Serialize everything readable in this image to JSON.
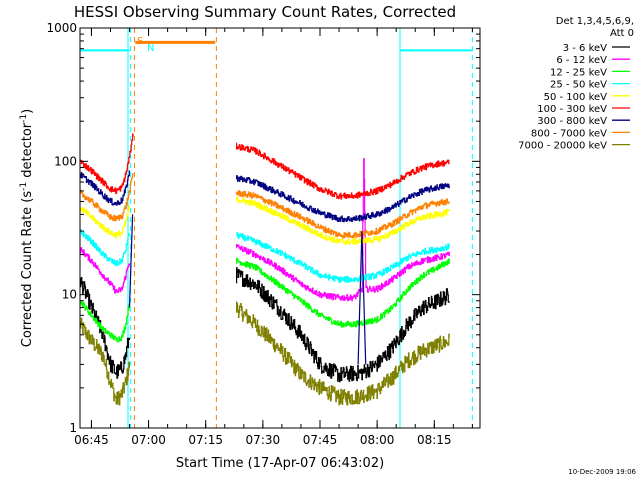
{
  "chart_data": {
    "type": "line",
    "title": "HESSI Observing Summary Count Rates, Corrected",
    "xlabel": "Start Time (17-Apr-07 06:43:02)",
    "ylabel_main": "Corrected Count Rate (s",
    "ylabel_sup1": "-1",
    "ylabel_mid": " detector",
    "ylabel_sup2": "-1",
    "ylabel_end": ")",
    "yscale": "log",
    "xlim_minutes": [
      402,
      507
    ],
    "ylim": [
      1,
      1000
    ],
    "xticks": [
      {
        "t": 405,
        "label": "06:45"
      },
      {
        "t": 420,
        "label": "07:00"
      },
      {
        "t": 435,
        "label": "07:15"
      },
      {
        "t": 450,
        "label": "07:30"
      },
      {
        "t": 465,
        "label": "07:45"
      },
      {
        "t": 480,
        "label": "08:00"
      },
      {
        "t": 495,
        "label": "08:15"
      }
    ],
    "yticks": [
      {
        "v": 1,
        "label": "1"
      },
      {
        "v": 10,
        "label": "10"
      },
      {
        "v": 100,
        "label": "100"
      },
      {
        "v": 1000,
        "label": "1000"
      }
    ],
    "legend_position": "right-outside",
    "legend_header": [
      "Det 1,3,4,5,6,9,",
      "Att 0"
    ],
    "series": [
      {
        "name": "3 - 6 keV",
        "color": "#000000",
        "pre": [
          [
            402,
            13
          ],
          [
            405,
            8
          ],
          [
            408,
            5
          ],
          [
            410,
            3
          ],
          [
            411.5,
            2.6
          ],
          [
            413,
            2.8
          ],
          [
            414,
            3.5
          ],
          [
            415,
            5
          ]
        ],
        "post": [
          [
            443,
            14
          ],
          [
            448,
            12
          ],
          [
            454,
            8
          ],
          [
            460,
            5
          ],
          [
            465,
            3
          ],
          [
            470,
            2.5
          ],
          [
            476,
            2.6
          ],
          [
            480,
            3
          ],
          [
            484,
            4
          ],
          [
            488,
            6
          ],
          [
            492,
            8
          ],
          [
            496,
            9
          ],
          [
            499,
            10
          ]
        ]
      },
      {
        "name": "6 - 12 keV",
        "color": "#ff00ff",
        "pre": [
          [
            402,
            22
          ],
          [
            405,
            18
          ],
          [
            408,
            14
          ],
          [
            410,
            12
          ],
          [
            411.5,
            10.5
          ],
          [
            413,
            11
          ],
          [
            414,
            14
          ],
          [
            415,
            18
          ]
        ],
        "post": [
          [
            443,
            23
          ],
          [
            448,
            20
          ],
          [
            454,
            16
          ],
          [
            460,
            12
          ],
          [
            465,
            10
          ],
          [
            470,
            9.5
          ],
          [
            474,
            9.5
          ],
          [
            476,
            11
          ],
          [
            476.5,
            115
          ],
          [
            477,
            11
          ],
          [
            480,
            11
          ],
          [
            484,
            13
          ],
          [
            488,
            16
          ],
          [
            492,
            18
          ],
          [
            496,
            19
          ],
          [
            499,
            20
          ]
        ]
      },
      {
        "name": "12 - 25 keV",
        "color": "#00ff00",
        "pre": [
          [
            402,
            9
          ],
          [
            405,
            7
          ],
          [
            408,
            5.5
          ],
          [
            410,
            5
          ],
          [
            411.5,
            4.6
          ],
          [
            413,
            4.8
          ],
          [
            414,
            6
          ],
          [
            415,
            9
          ]
        ],
        "post": [
          [
            443,
            18
          ],
          [
            448,
            16
          ],
          [
            454,
            12
          ],
          [
            460,
            9
          ],
          [
            465,
            7
          ],
          [
            470,
            6
          ],
          [
            474,
            6
          ],
          [
            480,
            6.5
          ],
          [
            484,
            8
          ],
          [
            488,
            11
          ],
          [
            492,
            14
          ],
          [
            496,
            16
          ],
          [
            499,
            18
          ]
        ]
      },
      {
        "name": "25 - 50 keV",
        "color": "#00ffff",
        "pre": [
          [
            402,
            30
          ],
          [
            405,
            25
          ],
          [
            408,
            20
          ],
          [
            410,
            18
          ],
          [
            411.5,
            17
          ],
          [
            413,
            18
          ],
          [
            414,
            22
          ],
          [
            415,
            30
          ]
        ],
        "post": [
          [
            443,
            28
          ],
          [
            448,
            25
          ],
          [
            454,
            21
          ],
          [
            460,
            17
          ],
          [
            465,
            14
          ],
          [
            470,
            13
          ],
          [
            474,
            13
          ],
          [
            480,
            14
          ],
          [
            484,
            16
          ],
          [
            488,
            19
          ],
          [
            492,
            21
          ],
          [
            496,
            22
          ],
          [
            499,
            23
          ]
        ]
      },
      {
        "name": "50 - 100 keV",
        "color": "#ffff00",
        "pre": [
          [
            402,
            45
          ],
          [
            405,
            38
          ],
          [
            408,
            32
          ],
          [
            410,
            29
          ],
          [
            411.5,
            28
          ],
          [
            413,
            29
          ],
          [
            414,
            35
          ],
          [
            415,
            46
          ]
        ],
        "post": [
          [
            443,
            52
          ],
          [
            448,
            48
          ],
          [
            454,
            40
          ],
          [
            460,
            33
          ],
          [
            465,
            28
          ],
          [
            470,
            25
          ],
          [
            474,
            25
          ],
          [
            480,
            26
          ],
          [
            484,
            29
          ],
          [
            488,
            34
          ],
          [
            492,
            38
          ],
          [
            496,
            40
          ],
          [
            499,
            42
          ]
        ]
      },
      {
        "name": "100 - 300 keV",
        "color": "#ff0000",
        "pre": [
          [
            402,
            100
          ],
          [
            405,
            85
          ],
          [
            408,
            70
          ],
          [
            410,
            62
          ],
          [
            411.5,
            60
          ],
          [
            413,
            64
          ],
          [
            414,
            80
          ],
          [
            415,
            110
          ],
          [
            416,
            165
          ]
        ],
        "post": [
          [
            443,
            130
          ],
          [
            448,
            120
          ],
          [
            454,
            95
          ],
          [
            460,
            75
          ],
          [
            465,
            62
          ],
          [
            470,
            55
          ],
          [
            474,
            55
          ],
          [
            480,
            60
          ],
          [
            484,
            68
          ],
          [
            488,
            80
          ],
          [
            492,
            90
          ],
          [
            496,
            96
          ],
          [
            499,
            98
          ]
        ]
      },
      {
        "name": "300 - 800 keV",
        "color": "#000080",
        "pre": [
          [
            415,
            8
          ],
          [
            415.8,
            40
          ]
        ],
        "post": [
          [
            475,
            3
          ],
          [
            476,
            30
          ],
          [
            477,
            3
          ]
        ]
      },
      {
        "name": "800 - 7000 keV",
        "color": "#ff8000",
        "pre": [
          [
            402,
            58
          ],
          [
            405,
            50
          ],
          [
            408,
            42
          ],
          [
            410,
            38
          ],
          [
            411.5,
            37
          ],
          [
            413,
            39
          ],
          [
            414,
            46
          ],
          [
            415,
            60
          ],
          [
            416,
            85
          ]
        ],
        "post": [
          [
            443,
            58
          ],
          [
            448,
            55
          ],
          [
            454,
            46
          ],
          [
            460,
            38
          ],
          [
            465,
            32
          ],
          [
            470,
            28
          ],
          [
            474,
            28
          ],
          [
            480,
            30
          ],
          [
            484,
            34
          ],
          [
            488,
            40
          ],
          [
            492,
            46
          ],
          [
            496,
            49
          ],
          [
            499,
            50
          ]
        ]
      },
      {
        "name": "7000 - 20000 keV",
        "color": "#808000",
        "pre": [
          [
            402,
            6
          ],
          [
            405,
            4.5
          ],
          [
            408,
            3.5
          ],
          [
            410,
            2.2
          ],
          [
            411.5,
            1.6
          ],
          [
            413,
            1.8
          ],
          [
            414,
            2.2
          ],
          [
            415,
            3
          ]
        ],
        "post": [
          [
            443,
            8
          ],
          [
            448,
            6
          ],
          [
            454,
            4
          ],
          [
            460,
            2.5
          ],
          [
            465,
            2
          ],
          [
            470,
            1.7
          ],
          [
            474,
            1.7
          ],
          [
            480,
            1.9
          ],
          [
            484,
            2.4
          ],
          [
            488,
            3.2
          ],
          [
            492,
            3.8
          ],
          [
            496,
            4.2
          ],
          [
            499,
            4.5
          ]
        ]
      },
      {
        "name": "",
        "color": "#000080",
        "pre": [
          [
            402,
            80
          ],
          [
            405,
            68
          ],
          [
            408,
            56
          ],
          [
            410,
            50
          ],
          [
            411.5,
            48
          ],
          [
            413,
            51
          ],
          [
            414,
            62
          ],
          [
            415,
            85
          ]
        ],
        "post": [
          [
            443,
            75
          ],
          [
            448,
            70
          ],
          [
            454,
            58
          ],
          [
            460,
            48
          ],
          [
            465,
            41
          ],
          [
            470,
            37
          ],
          [
            474,
            37
          ],
          [
            480,
            40
          ],
          [
            484,
            45
          ],
          [
            488,
            53
          ],
          [
            492,
            60
          ],
          [
            496,
            64
          ],
          [
            499,
            66
          ]
        ]
      }
    ],
    "annotations": {
      "saa_label": "S",
      "night_label": "N",
      "saa_bar": {
        "t0": 416.5,
        "t1": 437.5,
        "value": 780
      },
      "day_bars": [
        {
          "t0": 402,
          "t1": 415,
          "value": 680
        },
        {
          "t0": 486,
          "t1": 505,
          "value": 680
        }
      ],
      "cyan_solid_lines": [
        402,
        414.6,
        486
      ],
      "cyan_dashed_lines": [
        415.3,
        505
      ],
      "orange_dashed_lines": [
        416.3,
        437.8
      ]
    }
  },
  "footer_timestamp": "10-Dec-2009 19:06"
}
